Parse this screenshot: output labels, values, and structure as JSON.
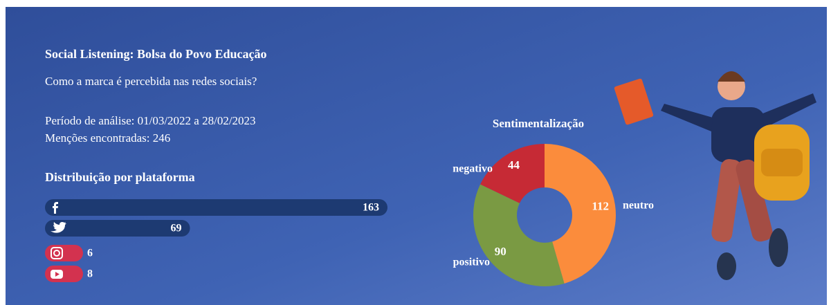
{
  "header": {
    "title": "Social Listening: Bolsa do Povo Educação",
    "subtitle": "Como a marca é percebida nas redes sociais?",
    "period": "Período de análise: 01/03/2022 a 28/02/2023",
    "mentions": "Menções encontradas: 246"
  },
  "chart_data": [
    {
      "type": "bar",
      "orientation": "horizontal",
      "title": "Distribuição por plataforma",
      "categories": [
        null,
        null,
        null,
        null
      ],
      "values": [
        163,
        69,
        6,
        8
      ],
      "colors": [
        "#1d3a72",
        "#1d3a72",
        "#d3324f",
        "#d3324f"
      ]
    },
    {
      "type": "donut",
      "title": "Sentimentalização",
      "categories": [
        "neutro",
        "positivo",
        "negativo"
      ],
      "values": [
        112,
        90,
        44
      ],
      "colors": [
        "#fb8c3c",
        "#7a9a43",
        "#c62a35"
      ]
    }
  ]
}
